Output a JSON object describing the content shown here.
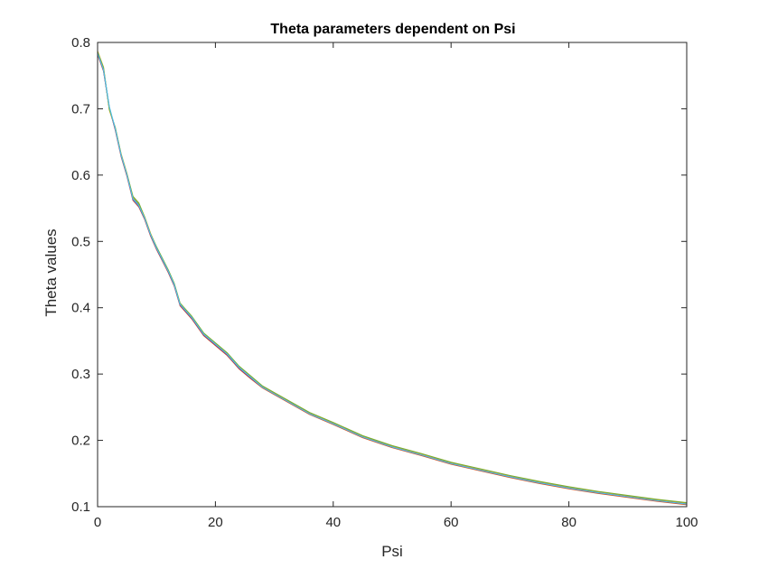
{
  "chart_data": {
    "type": "line",
    "title": "Theta parameters dependent on Psi",
    "xlabel": "Psi",
    "ylabel": "Theta values",
    "xlim": [
      0,
      100
    ],
    "ylim": [
      0.1,
      0.8
    ],
    "xticks": [
      "0",
      "20",
      "40",
      "60",
      "80",
      "100"
    ],
    "yticks": [
      "0.1",
      "0.2",
      "0.3",
      "0.4",
      "0.5",
      "0.6",
      "0.7",
      "0.8"
    ],
    "grid": false,
    "legend": "none",
    "x": [
      0,
      1,
      2,
      3,
      4,
      5,
      6,
      7,
      8,
      9,
      10,
      12,
      13,
      14,
      16,
      18,
      20,
      22,
      24,
      26,
      28,
      30,
      33,
      36,
      40,
      45,
      50,
      55,
      60,
      65,
      70,
      75,
      80,
      85,
      90,
      95,
      100
    ],
    "series": [
      {
        "color": "#0072BD",
        "values": [
          0.785,
          0.76,
          0.7,
          0.67,
          0.63,
          0.6,
          0.565,
          0.555,
          0.535,
          0.51,
          0.49,
          0.455,
          0.435,
          0.405,
          0.385,
          0.36,
          0.345,
          0.33,
          0.31,
          0.295,
          0.28,
          0.27,
          0.255,
          0.24,
          0.225,
          0.205,
          0.19,
          0.178,
          0.165,
          0.155,
          0.145,
          0.136,
          0.128,
          0.121,
          0.115,
          0.109,
          0.104
        ]
      },
      {
        "color": "#D95319",
        "values": [
          0.782,
          0.757,
          0.702,
          0.668,
          0.628,
          0.598,
          0.562,
          0.552,
          0.533,
          0.508,
          0.488,
          0.453,
          0.433,
          0.403,
          0.383,
          0.358,
          0.343,
          0.328,
          0.308,
          0.293,
          0.279,
          0.269,
          0.254,
          0.239,
          0.224,
          0.204,
          0.189,
          0.177,
          0.164,
          0.154,
          0.144,
          0.135,
          0.127,
          0.12,
          0.114,
          0.108,
          0.103
        ]
      },
      {
        "color": "#EDB120",
        "values": [
          0.787,
          0.763,
          0.698,
          0.671,
          0.632,
          0.602,
          0.567,
          0.557,
          0.537,
          0.512,
          0.491,
          0.456,
          0.436,
          0.406,
          0.386,
          0.361,
          0.346,
          0.331,
          0.311,
          0.296,
          0.281,
          0.271,
          0.256,
          0.241,
          0.226,
          0.206,
          0.191,
          0.179,
          0.166,
          0.156,
          0.146,
          0.137,
          0.129,
          0.122,
          0.116,
          0.11,
          0.105
        ]
      },
      {
        "color": "#7E2F8E",
        "values": [
          0.783,
          0.758,
          0.701,
          0.669,
          0.629,
          0.599,
          0.563,
          0.553,
          0.534,
          0.509,
          0.489,
          0.454,
          0.434,
          0.404,
          0.384,
          0.359,
          0.344,
          0.329,
          0.309,
          0.294,
          0.28,
          0.27,
          0.255,
          0.24,
          0.225,
          0.205,
          0.19,
          0.178,
          0.165,
          0.155,
          0.145,
          0.136,
          0.128,
          0.121,
          0.115,
          0.109,
          0.104
        ]
      },
      {
        "color": "#77AC30",
        "values": [
          0.786,
          0.762,
          0.699,
          0.672,
          0.631,
          0.601,
          0.568,
          0.558,
          0.536,
          0.511,
          0.492,
          0.457,
          0.437,
          0.407,
          0.387,
          0.362,
          0.347,
          0.332,
          0.312,
          0.297,
          0.282,
          0.272,
          0.257,
          0.242,
          0.227,
          0.207,
          0.192,
          0.18,
          0.167,
          0.157,
          0.147,
          0.138,
          0.13,
          0.123,
          0.117,
          0.111,
          0.106
        ]
      },
      {
        "color": "#4DBEEE",
        "values": [
          0.784,
          0.759,
          0.703,
          0.67,
          0.63,
          0.6,
          0.564,
          0.554,
          0.535,
          0.51,
          0.49,
          0.455,
          0.435,
          0.405,
          0.385,
          0.36,
          0.345,
          0.33,
          0.31,
          0.295,
          0.28,
          0.27,
          0.255,
          0.24,
          0.225,
          0.205,
          0.19,
          0.178,
          0.165,
          0.155,
          0.145,
          0.136,
          0.128,
          0.121,
          0.115,
          0.109,
          0.104
        ]
      }
    ]
  }
}
